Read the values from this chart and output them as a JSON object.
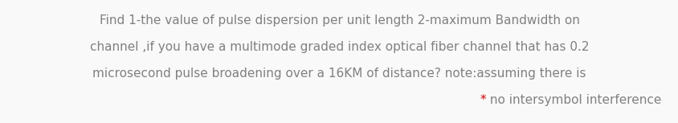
{
  "line1": "Find 1-the value of pulse dispersion per unit length 2-maximum Bandwidth on",
  "line2": "channel ,if you have a multimode graded index optical fiber channel that has 0.2",
  "line3": "microsecond pulse broadening over a 16KM of distance? note:assuming there is",
  "line4_star": "*",
  "line4_text": " no intersymbol interference",
  "text_color": "#808080",
  "star_color": "#cc0000",
  "background_color": "#f9f9f9",
  "font_size": 11.0,
  "fig_width": 8.45,
  "fig_height": 1.53,
  "dpi": 100
}
